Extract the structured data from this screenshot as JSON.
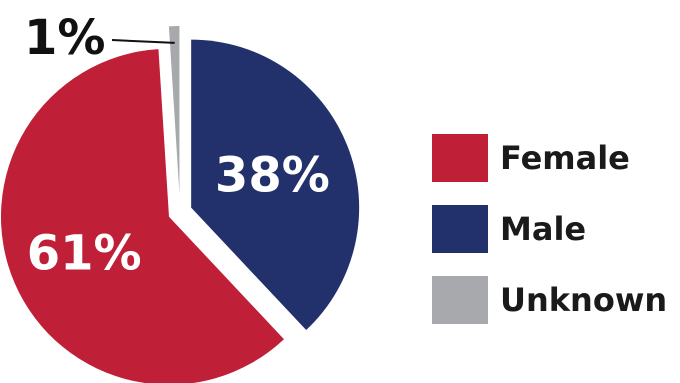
{
  "chart_data": {
    "type": "pie",
    "categories": [
      "Female",
      "Male",
      "Unknown"
    ],
    "values": [
      61,
      38,
      1
    ],
    "labels": [
      "61%",
      "38%",
      "1%"
    ],
    "colors": [
      "#bf2038",
      "#22316c",
      "#a7a9ac"
    ],
    "legend_position": "right",
    "title": ""
  },
  "legend": {
    "items": [
      {
        "label": "Female",
        "color": "#bf2038"
      },
      {
        "label": "Male",
        "color": "#22316c"
      },
      {
        "label": "Unknown",
        "color": "#a7a9ac"
      }
    ]
  }
}
